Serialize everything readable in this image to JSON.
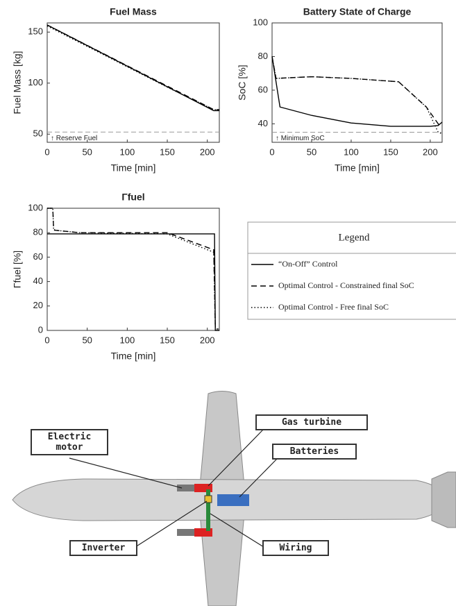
{
  "chart_data": [
    {
      "type": "line",
      "title": "Fuel Mass",
      "x_label": "Time [min]",
      "y_label": "Fuel Mass [kg]",
      "xlim": [
        0,
        215
      ],
      "xticks": [
        0,
        50,
        100,
        150,
        200
      ],
      "ylim": [
        42,
        159
      ],
      "yticks": [
        50,
        100,
        150
      ],
      "reference_line": {
        "value": 52,
        "label": "↑ Reserve Fuel"
      },
      "series": [
        {
          "name": "“On-Off” Control",
          "color": "#000000",
          "style": "solid",
          "x": [
            0,
            208,
            215
          ],
          "values": [
            157,
            73,
            73
          ]
        },
        {
          "name": "Optimal Control - Constrained final SoC",
          "color": "#000000",
          "style": "dashed",
          "x": [
            0,
            100,
            208,
            215
          ],
          "values": [
            157,
            117,
            74,
            74
          ]
        },
        {
          "name": "Optimal Control - Free final SoC",
          "color": "#000000",
          "style": "dotted",
          "x": [
            0,
            50,
            100,
            150,
            208,
            215
          ],
          "values": [
            156,
            136,
            116,
            96,
            74,
            74
          ]
        }
      ]
    },
    {
      "type": "line",
      "title": "Battery State of Charge",
      "x_label": "Time [min]",
      "y_label": "SoC [%]",
      "xlim": [
        0,
        215
      ],
      "xticks": [
        0,
        50,
        100,
        150,
        200
      ],
      "ylim": [
        29,
        100
      ],
      "yticks": [
        40,
        60,
        80,
        100
      ],
      "reference_line": {
        "value": 35,
        "label": "↑ Minimum SoC"
      },
      "series": [
        {
          "name": "“On-Off” Control",
          "color": "#000000",
          "style": "solid",
          "x": [
            0,
            10,
            50,
            100,
            150,
            200,
            210,
            215
          ],
          "values": [
            80,
            50,
            45,
            40.5,
            38.5,
            38.5,
            39,
            41
          ]
        },
        {
          "name": "Optimal Control - Constrained final SoC",
          "color": "#000000",
          "style": "dashed",
          "x": [
            0,
            5,
            50,
            100,
            160,
            195,
            213
          ],
          "values": [
            80,
            67,
            68,
            67,
            65,
            50,
            38
          ]
        },
        {
          "name": "Optimal Control - Free final SoC",
          "color": "#000000",
          "style": "dotted",
          "x": [
            0,
            5,
            50,
            100,
            160,
            195,
            210,
            215
          ],
          "values": [
            80,
            67,
            68,
            67,
            65,
            50,
            35,
            34
          ]
        }
      ]
    },
    {
      "type": "line",
      "title": "Γfuel",
      "x_label": "Time [min]",
      "y_label": "Γfuel [%]",
      "xlim": [
        0,
        215
      ],
      "xticks": [
        0,
        50,
        100,
        150,
        200
      ],
      "ylim": [
        0,
        100
      ],
      "yticks": [
        0,
        20,
        40,
        60,
        80,
        100
      ],
      "series": [
        {
          "name": "“On-Off” Control",
          "color": "#000000",
          "style": "solid",
          "x": [
            0,
            209,
            210,
            215
          ],
          "values": [
            79,
            79,
            0,
            0
          ]
        },
        {
          "name": "Optimal Control - Constrained final SoC",
          "color": "#000000",
          "style": "dashed",
          "x": [
            0,
            7,
            8,
            10,
            40,
            150,
            208,
            210,
            214
          ],
          "values": [
            100,
            100,
            83,
            82,
            80,
            80,
            66,
            2,
            1
          ]
        },
        {
          "name": "Optimal Control - Free final SoC",
          "color": "#000000",
          "style": "dotted",
          "x": [
            0,
            7,
            8,
            10,
            40,
            150,
            208,
            210,
            215
          ],
          "values": [
            100,
            100,
            82,
            82,
            80,
            79,
            64,
            2,
            0
          ]
        }
      ]
    }
  ],
  "legend": {
    "title": "Legend"
  },
  "diagram": {
    "labels": [
      "Gas turbine",
      "Electric motor",
      "Batteries",
      "Inverter",
      "Wiring"
    ]
  }
}
